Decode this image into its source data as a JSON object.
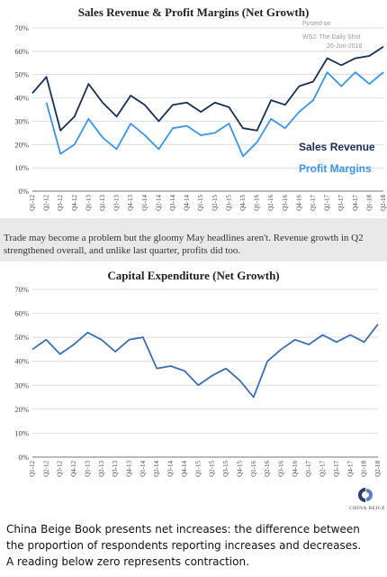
{
  "top_chart_title": "Sales Revenue & Profit Margins (Net Growth)",
  "watermark": {
    "line1": "Posted on",
    "line2": "WSJ: The Daily Shot",
    "line3": "26-Jun-2018"
  },
  "mid_text": {
    "line1": "Trade may become a problem but the gloomy May headlines aren't. Revenue growth in Q2",
    "line2": "strengthened overall, and unlike last quarter, profits did too."
  },
  "bottom_chart_title": "Capital Expenditure (Net Growth)",
  "logo_text": "CHINA BEIGE",
  "caption": {
    "line1": "China Beige Book presents net increases: the difference between",
    "line2": "the proportion of respondents reporting increases and decreases.",
    "line3": "A reading below zero represents contraction."
  },
  "colors": {
    "sales": "#1a2d57",
    "profit": "#3b94e6",
    "capex": "#3d6fb0",
    "grid": "#d0d0d0"
  },
  "chart_data": [
    {
      "type": "line",
      "title": "Sales Revenue & Profit Margins (Net Growth)",
      "categories": [
        "Q1-12",
        "Q2-12",
        "Q3-12",
        "Q4-12",
        "Q1-13",
        "Q2-13",
        "Q3-13",
        "Q4-13",
        "Q1-14",
        "Q2-14",
        "Q3-14",
        "Q4-14",
        "Q1-15",
        "Q2-15",
        "Q3-15",
        "Q4-15",
        "Q1-16",
        "Q2-16",
        "Q3-16",
        "Q4-16",
        "Q1-17",
        "Q2-17",
        "Q3-17",
        "Q4-17",
        "Q1-18",
        "Q2-18"
      ],
      "series": [
        {
          "name": "Sales Revenue",
          "values": [
            42,
            49,
            26,
            32,
            46,
            38,
            32,
            41,
            37,
            30,
            37,
            38,
            34,
            38,
            36,
            27,
            26,
            39,
            37,
            45,
            47,
            57,
            54,
            57,
            58,
            62
          ]
        },
        {
          "name": "Profit Margins",
          "values": [
            null,
            38,
            16,
            20,
            31,
            23,
            18,
            29,
            24,
            18,
            27,
            28,
            24,
            25,
            29,
            15,
            21,
            31,
            27,
            34,
            39,
            51,
            45,
            51,
            46,
            51
          ]
        }
      ],
      "ylim": [
        0,
        70
      ],
      "yticks": [
        "0%",
        "10%",
        "20%",
        "30%",
        "40%",
        "50%",
        "60%",
        "70%"
      ],
      "grid": true,
      "legend": "right"
    },
    {
      "type": "line",
      "title": "Capital Expenditure (Net Growth)",
      "categories": [
        "Q1-12",
        "Q2-12",
        "Q3-12",
        "Q4-12",
        "Q1-13",
        "Q2-13",
        "Q3-13",
        "Q4-13",
        "Q1-14",
        "Q2-14",
        "Q3-14",
        "Q4-14",
        "Q1-15",
        "Q2-15",
        "Q3-15",
        "Q4-15",
        "Q1-16",
        "Q2-16",
        "Q3-16",
        "Q4-16",
        "Q1-17",
        "Q2-17",
        "Q3-17",
        "Q4-17",
        "Q1-18",
        "Q2-18"
      ],
      "series": [
        {
          "values": [
            45,
            49,
            43,
            47,
            52,
            49,
            44,
            49,
            50,
            37,
            38,
            36,
            30,
            34,
            37,
            32,
            25,
            40,
            45,
            49,
            47,
            51,
            48,
            51,
            48,
            55.5
          ]
        }
      ],
      "ylim": [
        0,
        70
      ],
      "yticks": [
        "0%",
        "10%",
        "20%",
        "30%",
        "40%",
        "50%",
        "60%",
        "70%"
      ],
      "grid": true
    }
  ]
}
